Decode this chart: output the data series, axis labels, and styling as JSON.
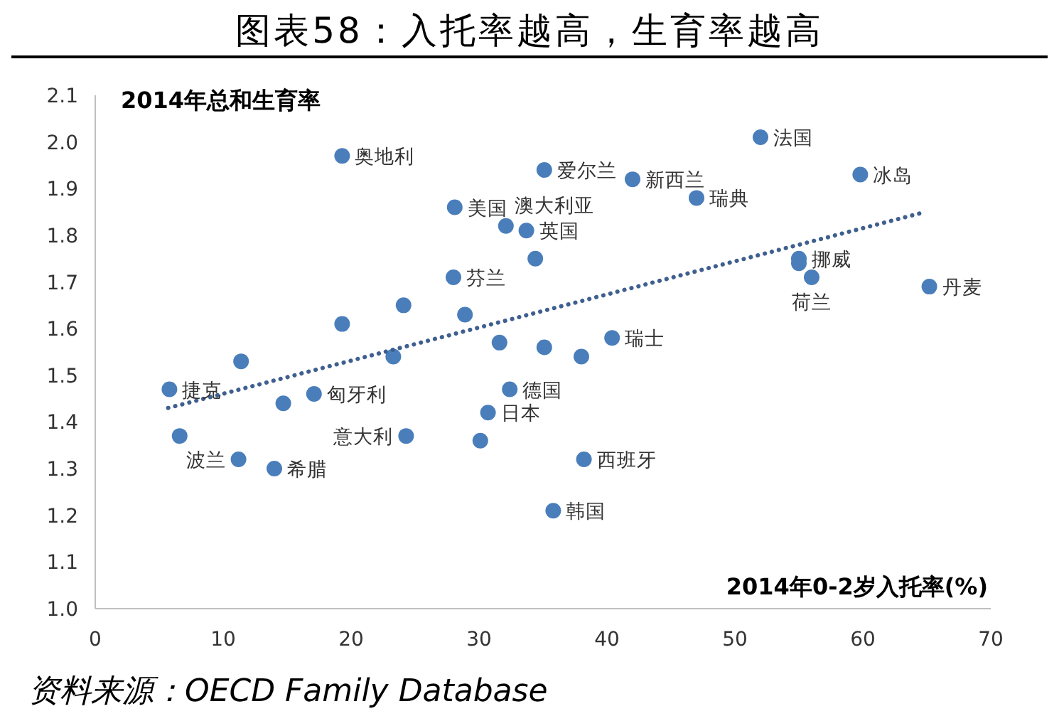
{
  "chart_data": {
    "type": "scatter",
    "title": "图表58：入托率越高，生育率越高",
    "ylabel": "2014年总和生育率",
    "xlabel": "2014年0-2岁入托率(%)",
    "annotations": [
      "资料来源：OECD Family Database",
      {
        "text": "奥地利",
        "x": 19.3,
        "y": 1.97
      },
      {
        "text": "爱尔兰",
        "x": 35.1,
        "y": 1.94
      },
      {
        "text": "法国",
        "x": 52.0,
        "y": 2.01
      },
      {
        "text": "新西兰",
        "x": 42.0,
        "y": 1.92
      },
      {
        "text": "冰岛",
        "x": 59.8,
        "y": 1.93
      },
      {
        "text": "瑞典",
        "x": 47.0,
        "y": 1.88
      },
      {
        "text": "美国",
        "x": 28.1,
        "y": 1.86
      },
      {
        "text": "澳大利亚",
        "x": 32.1,
        "y": 1.82
      },
      {
        "text": "英国",
        "x": 33.7,
        "y": 1.81
      },
      {
        "text": "挪威",
        "x": 55.0,
        "y": 1.75
      },
      {
        "text": "荷兰",
        "x": 56.0,
        "y": 1.71
      },
      {
        "text": "丹麦",
        "x": 65.2,
        "y": 1.69
      },
      {
        "text": "芬兰",
        "x": 28.0,
        "y": 1.71
      },
      {
        "text": "瑞士",
        "x": 40.4,
        "y": 1.58
      },
      {
        "text": "捷克",
        "x": 5.8,
        "y": 1.47
      },
      {
        "text": "匈牙利",
        "x": 17.1,
        "y": 1.46
      },
      {
        "text": "波兰",
        "x": 11.2,
        "y": 1.32
      },
      {
        "text": "希腊",
        "x": 14.0,
        "y": 1.3
      },
      {
        "text": "意大利",
        "x": 24.3,
        "y": 1.37
      },
      {
        "text": "德国",
        "x": 32.4,
        "y": 1.47
      },
      {
        "text": "日本",
        "x": 30.7,
        "y": 1.42
      },
      {
        "text": "西班牙",
        "x": 38.2,
        "y": 1.32
      },
      {
        "text": "韩国",
        "x": 35.8,
        "y": 1.21
      }
    ],
    "xlim": [
      0,
      70
    ],
    "xticks": [
      0,
      10,
      20,
      30,
      40,
      50,
      60,
      70
    ],
    "ylim": [
      1.0,
      2.1
    ],
    "yticks": [
      {
        "value": 1.0,
        "label": "1.0"
      },
      1.1,
      1.2,
      1.3,
      1.4,
      1.5,
      1.6,
      1.7,
      1.8,
      1.9,
      {
        "value": 2.0,
        "label": "2.0"
      },
      2.1
    ],
    "grid": false,
    "series": [
      {
        "marker": "circle",
        "color": "#4a7ebb",
        "x": [
          19.3,
          35.1,
          52.0,
          42.0,
          59.8,
          47.0,
          28.1,
          32.1,
          33.7,
          34.4,
          55.0,
          55.0,
          56.0,
          65.2,
          28.0,
          19.3,
          24.1,
          28.9,
          31.6,
          35.1,
          38.0,
          40.4,
          23.3,
          11.4,
          5.8,
          6.6,
          14.7,
          17.1,
          11.2,
          14.0,
          24.3,
          32.4,
          30.7,
          30.1,
          38.2,
          35.8
        ],
        "values": [
          1.97,
          1.94,
          2.01,
          1.92,
          1.93,
          1.88,
          1.86,
          1.82,
          1.81,
          1.75,
          1.75,
          1.74,
          1.71,
          1.69,
          1.71,
          1.61,
          1.65,
          1.63,
          1.57,
          1.56,
          1.54,
          1.58,
          1.54,
          1.53,
          1.47,
          1.37,
          1.44,
          1.46,
          1.32,
          1.3,
          1.37,
          1.47,
          1.42,
          1.36,
          1.32,
          1.21
        ]
      },
      {
        "type": "line",
        "color": "#3f5f8f",
        "line_style": "dotted",
        "x": [
          5.7,
          64.9
        ],
        "values": [
          1.43,
          1.85
        ]
      }
    ]
  }
}
